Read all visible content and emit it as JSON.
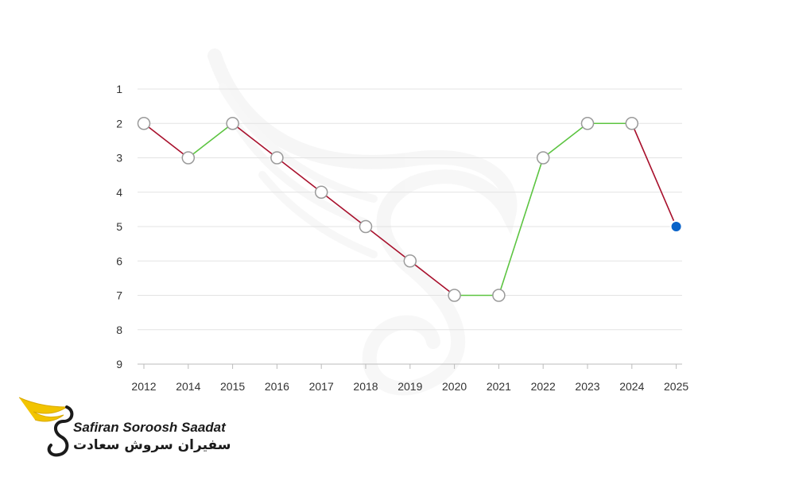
{
  "chart_data": {
    "type": "line",
    "title": "",
    "xlabel": "",
    "ylabel": "",
    "x": [
      "2012",
      "2014",
      "2015",
      "2016",
      "2017",
      "2018",
      "2019",
      "2020",
      "2021",
      "2022",
      "2023",
      "2024",
      "2025"
    ],
    "y_ticks": [
      "1",
      "2",
      "3",
      "4",
      "5",
      "6",
      "7",
      "8",
      "9"
    ],
    "ylim": [
      1,
      9
    ],
    "y_inverted": true,
    "grid": "horizontal",
    "legend": "none",
    "series": [
      {
        "values": [
          2,
          3,
          2,
          3,
          4,
          5,
          6,
          7,
          7,
          3,
          2,
          2,
          5
        ]
      }
    ],
    "colors": {
      "worse": "#a8102c",
      "better": "#5cc441",
      "marker_fill": "#ffffff",
      "marker_stroke": "#9a9a9a",
      "last_marker": "#0a63c9",
      "grid": "#e3e3e3",
      "axis": "#bbbbbb"
    }
  },
  "logo": {
    "name_en": "Safiran Soroosh Saadat",
    "name_fa": "سفیران سروش سعادت",
    "colors": {
      "wing": "#f2c400",
      "dark": "#1b1b1b"
    }
  }
}
